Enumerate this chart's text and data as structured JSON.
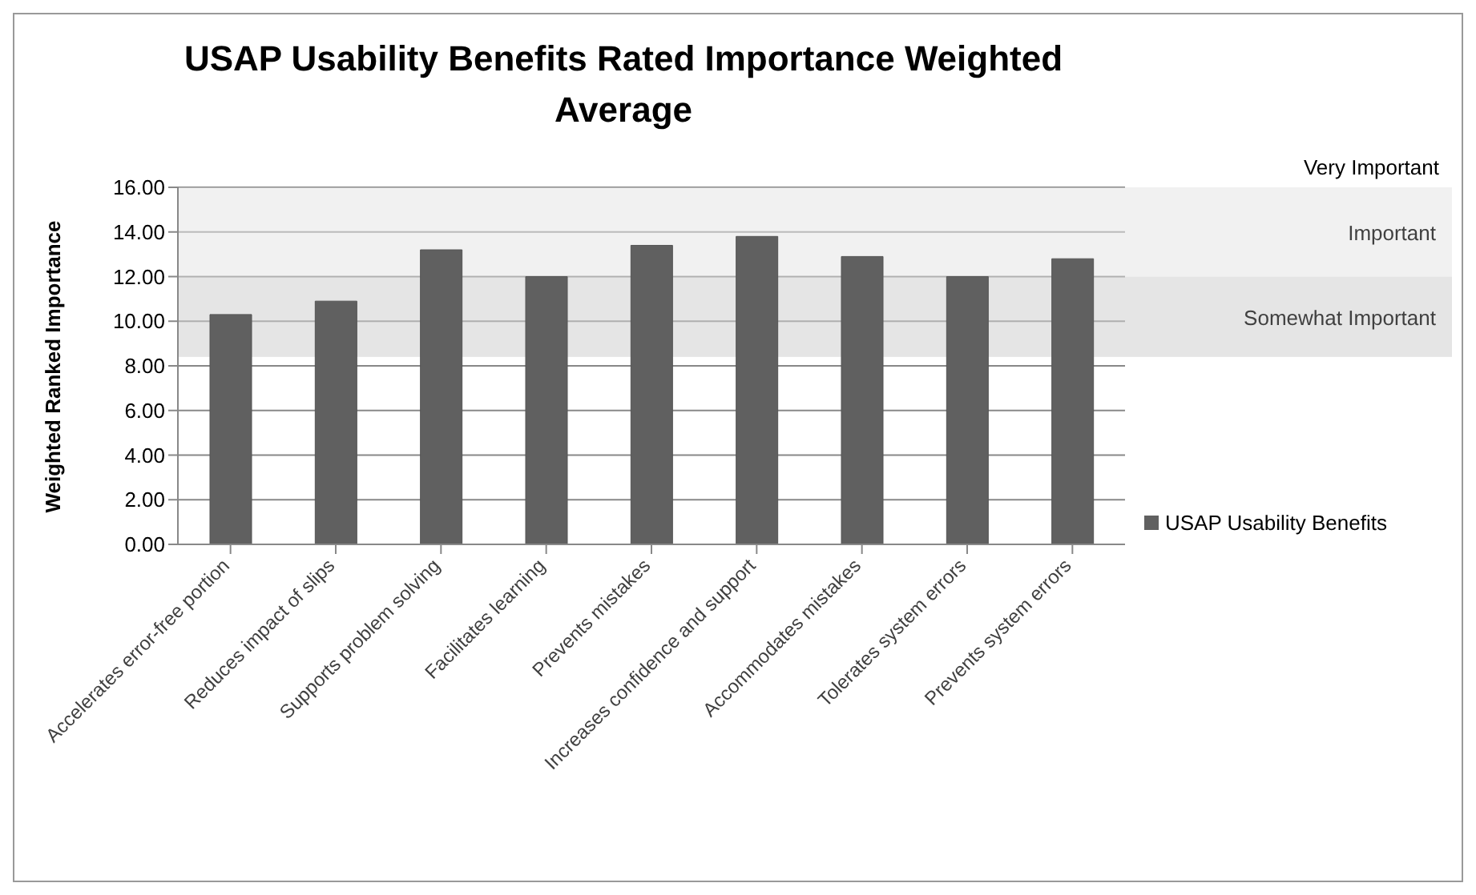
{
  "chart_data": {
    "type": "bar",
    "title": "USAP Usability  Benefits Rated Importance  Weighted Average",
    "ylabel": "Weighted Ranked  Importance",
    "categories": [
      "Accelerates error-free portion",
      "Reduces impact of slips",
      "Supports problem solving",
      "Facilitates learning",
      "Prevents mistakes",
      "Increases confidence and support",
      "Accommodates mistakes",
      "Tolerates system errors",
      "Prevents system errors"
    ],
    "series": [
      {
        "name": "USAP Usability  Benefits",
        "color": "#606060",
        "values": [
          10.3,
          10.9,
          13.2,
          12.0,
          13.4,
          13.8,
          12.9,
          12.0,
          12.8
        ]
      }
    ],
    "ylim": [
      0,
      16
    ],
    "yticks": [
      {
        "value": 0,
        "label": "0.00"
      },
      {
        "value": 2,
        "label": "2.00"
      },
      {
        "value": 4,
        "label": "4.00"
      },
      {
        "value": 6,
        "label": "6.00"
      },
      {
        "value": 8,
        "label": "8.00"
      },
      {
        "value": 10,
        "label": "10.00"
      },
      {
        "value": 12,
        "label": "12.00"
      },
      {
        "value": 14,
        "label": "14.00"
      },
      {
        "value": 16,
        "label": "16.00"
      }
    ],
    "bands": [
      {
        "axis": "y",
        "from": 8.4,
        "to": 12,
        "label": "Somewhat Important",
        "color": "#d0d0d0"
      },
      {
        "axis": "y",
        "from": 12,
        "to": 16,
        "label": "Important",
        "color": "#e6e6e6"
      }
    ],
    "annotations": [
      "Very Important"
    ],
    "grid": "y",
    "legend": "right"
  }
}
